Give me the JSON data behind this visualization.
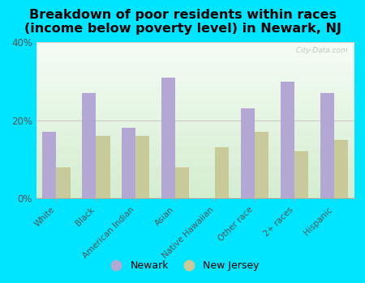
{
  "categories": [
    "White",
    "Black",
    "American Indian",
    "Asian",
    "Native Hawaiian",
    "Other race",
    "2+ races",
    "Hispanic"
  ],
  "newark": [
    17,
    27,
    18,
    31,
    0,
    23,
    30,
    27
  ],
  "nj": [
    8,
    16,
    16,
    8,
    13,
    17,
    12,
    15
  ],
  "newark_color": "#b3a8d4",
  "nj_color": "#c8ca9a",
  "bg_color": "#00e5ff",
  "title": "Breakdown of poor residents within races\n(income below poverty level) in Newark, NJ",
  "title_fontsize": 11.5,
  "title_fontweight": "bold",
  "ylim": [
    0,
    40
  ],
  "yticks": [
    0,
    20,
    40
  ],
  "ytick_labels": [
    "0%",
    "20%",
    "40%"
  ],
  "bar_width": 0.35,
  "legend_newark": "Newark",
  "legend_nj": "New Jersey",
  "watermark": "  City-Data.com"
}
